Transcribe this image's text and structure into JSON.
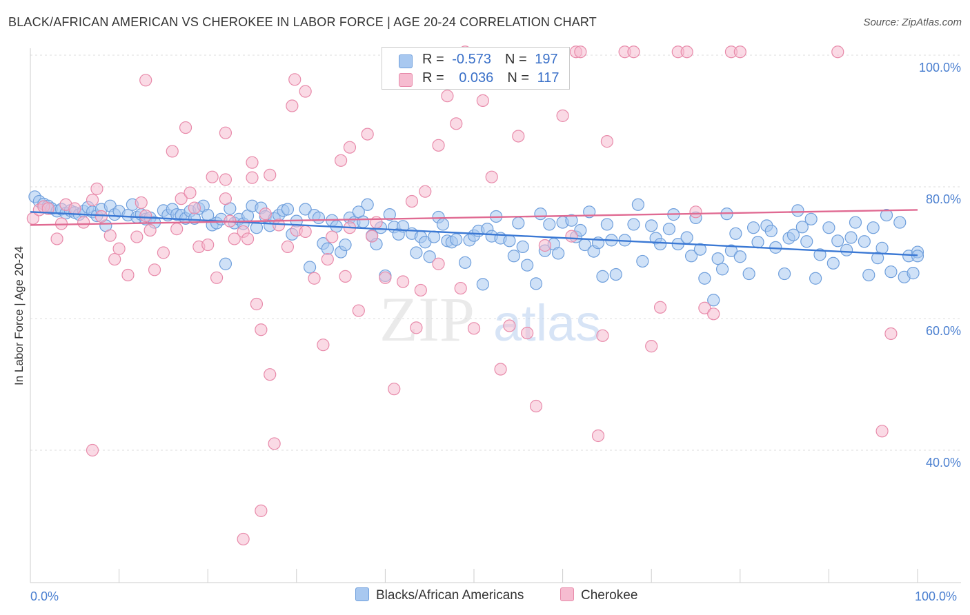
{
  "title": "BLACK/AFRICAN AMERICAN VS CHEROKEE IN LABOR FORCE | AGE 20-24 CORRELATION CHART",
  "source": "Source: ZipAtlas.com",
  "watermark": {
    "zip": "ZIP",
    "atlas": "atlas"
  },
  "legend": {
    "blue": {
      "r_label": "R =",
      "r_value": "-0.573",
      "n_label": "N =",
      "n_value": "197"
    },
    "pink": {
      "r_label": "R =",
      "r_value": "0.036",
      "n_label": "N =",
      "n_value": "117"
    }
  },
  "colors": {
    "blue_fill": "#a8c8f0",
    "blue_stroke": "#6f9fdc",
    "blue_line": "#3a78d4",
    "pink_fill": "#f6bcd0",
    "pink_stroke": "#e88aaa",
    "pink_line": "#e06a92"
  },
  "chart_data": {
    "type": "scatter",
    "title": "BLACK/AFRICAN AMERICAN VS CHEROKEE IN LABOR FORCE | AGE 20-24 CORRELATION CHART",
    "xlabel": "",
    "ylabel": "In Labor Force | Age 20-24",
    "xlim": [
      0,
      100
    ],
    "ylim": [
      20,
      102
    ],
    "x_tick_labels": [
      "0.0%",
      "100.0%"
    ],
    "y_ticks": [
      40,
      60,
      80,
      100
    ],
    "y_tick_labels": [
      "40.0%",
      "60.0%",
      "80.0%",
      "100.0%"
    ],
    "series": [
      {
        "name": "Blacks/African Americans",
        "trend": {
          "x": [
            0,
            100
          ],
          "y": [
            76.2,
            69.6
          ]
        },
        "points": [
          [
            0.5,
            78.5
          ],
          [
            1,
            77.8
          ],
          [
            1.5,
            77.4
          ],
          [
            2,
            77.1
          ],
          [
            2.4,
            76.7
          ],
          [
            3,
            76.3
          ],
          [
            3.5,
            76.6
          ],
          [
            4,
            76
          ],
          [
            4.5,
            76.4
          ],
          [
            5,
            76.1
          ],
          [
            5.5,
            75.8
          ],
          [
            6,
            76.3
          ],
          [
            6.5,
            76.9
          ],
          [
            7,
            76.2
          ],
          [
            7.5,
            75.6
          ],
          [
            8,
            76.6
          ],
          [
            8.5,
            74.1
          ],
          [
            9,
            77.1
          ],
          [
            9.5,
            75.8
          ],
          [
            10,
            76.3
          ],
          [
            11,
            75.7
          ],
          [
            11.5,
            77.3
          ],
          [
            12,
            75.4
          ],
          [
            12.5,
            75.8
          ],
          [
            13,
            75.1
          ],
          [
            13.5,
            75.3
          ],
          [
            14,
            74.6
          ],
          [
            15,
            76.4
          ],
          [
            15.5,
            75.7
          ],
          [
            16,
            76.6
          ],
          [
            16.5,
            75.8
          ],
          [
            17,
            75.7
          ],
          [
            17.5,
            75.2
          ],
          [
            18,
            76.3
          ],
          [
            18.5,
            75.2
          ],
          [
            19,
            76.7
          ],
          [
            19.5,
            77.1
          ],
          [
            20,
            75.7
          ],
          [
            20.5,
            74.2
          ],
          [
            21,
            74.5
          ],
          [
            21.5,
            75.1
          ],
          [
            22,
            68.3
          ],
          [
            22.5,
            76.7
          ],
          [
            23,
            74.5
          ],
          [
            23.5,
            75.1
          ],
          [
            24,
            74.4
          ],
          [
            24.5,
            75.6
          ],
          [
            25,
            77.1
          ],
          [
            25.5,
            73.8
          ],
          [
            26,
            76.8
          ],
          [
            26.5,
            75.5
          ],
          [
            27,
            74.1
          ],
          [
            27.5,
            75.2
          ],
          [
            28,
            75.7
          ],
          [
            28.5,
            76.4
          ],
          [
            29,
            76.6
          ],
          [
            29.5,
            72.8
          ],
          [
            30,
            74.8
          ],
          [
            31,
            76.6
          ],
          [
            31.5,
            67.8
          ],
          [
            32,
            75.7
          ],
          [
            32.5,
            75.3
          ],
          [
            33,
            71.4
          ],
          [
            33.5,
            70.6
          ],
          [
            34,
            74.9
          ],
          [
            34.5,
            74
          ],
          [
            35,
            70.1
          ],
          [
            35.5,
            71.2
          ],
          [
            36,
            75.3
          ],
          [
            36.5,
            74.6
          ],
          [
            37,
            76.2
          ],
          [
            37.5,
            74.7
          ],
          [
            38,
            77.3
          ],
          [
            38.5,
            72.6
          ],
          [
            39,
            71.3
          ],
          [
            39.5,
            73.8
          ],
          [
            40,
            66.5
          ],
          [
            40.5,
            75.8
          ],
          [
            41,
            73.9
          ],
          [
            41.5,
            72.8
          ],
          [
            42,
            74
          ],
          [
            43,
            72.9
          ],
          [
            43.5,
            70
          ],
          [
            44,
            72.4
          ],
          [
            44.5,
            71.6
          ],
          [
            45,
            69.4
          ],
          [
            45.5,
            72.4
          ],
          [
            46,
            75.4
          ],
          [
            46.5,
            74.3
          ],
          [
            47,
            71.8
          ],
          [
            47.5,
            71.6
          ],
          [
            48,
            72
          ],
          [
            49,
            68.5
          ],
          [
            49.5,
            71.9
          ],
          [
            50,
            72.6
          ],
          [
            50.5,
            73.3
          ],
          [
            51,
            65.2
          ],
          [
            51.5,
            73.6
          ],
          [
            52,
            72.5
          ],
          [
            52.5,
            75.5
          ],
          [
            53,
            72.2
          ],
          [
            54,
            71.8
          ],
          [
            54.5,
            69.5
          ],
          [
            55,
            74.5
          ],
          [
            55.5,
            70.9
          ],
          [
            56,
            68.1
          ],
          [
            57,
            65.3
          ],
          [
            57.5,
            75.9
          ],
          [
            58,
            70.3
          ],
          [
            58.5,
            74.3
          ],
          [
            59,
            71.3
          ],
          [
            59.5,
            69.9
          ],
          [
            60,
            74.6
          ],
          [
            61,
            74.9
          ],
          [
            61.5,
            72.4
          ],
          [
            62,
            73.4
          ],
          [
            62.5,
            71.2
          ],
          [
            63,
            76.2
          ],
          [
            63.5,
            70.2
          ],
          [
            64,
            71.5
          ],
          [
            64.5,
            66.4
          ],
          [
            65,
            74.3
          ],
          [
            65.5,
            71.9
          ],
          [
            66,
            66.7
          ],
          [
            67,
            71.9
          ],
          [
            68,
            74.3
          ],
          [
            68.5,
            77.3
          ],
          [
            69,
            68.7
          ],
          [
            70,
            74.1
          ],
          [
            70.5,
            72.2
          ],
          [
            71,
            71.3
          ],
          [
            72,
            73.6
          ],
          [
            72.5,
            75.8
          ],
          [
            73,
            71.3
          ],
          [
            74,
            72.3
          ],
          [
            74.5,
            69.5
          ],
          [
            75,
            75.3
          ],
          [
            75.5,
            70.5
          ],
          [
            76,
            66.1
          ],
          [
            77,
            62.8
          ],
          [
            77.5,
            69.1
          ],
          [
            78,
            67.5
          ],
          [
            78.5,
            75.9
          ],
          [
            79,
            70.3
          ],
          [
            79.5,
            72.9
          ],
          [
            80,
            69.4
          ],
          [
            81,
            66.8
          ],
          [
            81.5,
            73.8
          ],
          [
            82,
            71.6
          ],
          [
            83,
            74.1
          ],
          [
            83.5,
            73.3
          ],
          [
            84,
            70.8
          ],
          [
            85,
            66.8
          ],
          [
            85.5,
            72.2
          ],
          [
            86,
            72.7
          ],
          [
            86.5,
            76.4
          ],
          [
            87,
            73.9
          ],
          [
            87.5,
            71.7
          ],
          [
            88,
            75.1
          ],
          [
            88.5,
            66.1
          ],
          [
            89,
            69.7
          ],
          [
            90,
            73.8
          ],
          [
            90.5,
            68.4
          ],
          [
            91,
            71.8
          ],
          [
            92,
            70.4
          ],
          [
            92.5,
            72.3
          ],
          [
            93,
            74.6
          ],
          [
            94,
            71.7
          ],
          [
            94.5,
            66.6
          ],
          [
            95,
            73.8
          ],
          [
            96,
            70.7
          ],
          [
            96.5,
            75.7
          ],
          [
            97,
            67.1
          ],
          [
            98,
            74.6
          ],
          [
            98.5,
            66.3
          ],
          [
            99,
            69.5
          ],
          [
            99.5,
            66.9
          ],
          [
            100,
            70.1
          ],
          [
            100,
            69.5
          ],
          [
            95.5,
            69.2
          ]
        ]
      },
      {
        "name": "Cherokee",
        "trend": {
          "x": [
            0,
            100
          ],
          "y": [
            74.2,
            76.5
          ]
        },
        "points": [
          [
            0.3,
            75.2
          ],
          [
            1,
            76.5
          ],
          [
            1.5,
            77
          ],
          [
            2,
            76.7
          ],
          [
            3,
            72.1
          ],
          [
            3.5,
            74.4
          ],
          [
            4,
            77.3
          ],
          [
            5,
            76.7
          ],
          [
            6,
            74.6
          ],
          [
            7,
            78
          ],
          [
            7.5,
            79.7
          ],
          [
            8,
            75.5
          ],
          [
            9,
            72.6
          ],
          [
            9.5,
            69
          ],
          [
            10,
            70.6
          ],
          [
            11,
            66.6
          ],
          [
            12,
            72.4
          ],
          [
            12.5,
            77.6
          ],
          [
            13,
            75.6
          ],
          [
            13.5,
            73.4
          ],
          [
            14,
            67.4
          ],
          [
            15,
            70
          ],
          [
            16,
            85.4
          ],
          [
            16.5,
            73.6
          ],
          [
            17,
            78.2
          ],
          [
            18,
            79.1
          ],
          [
            18.5,
            76.8
          ],
          [
            19,
            70.9
          ],
          [
            20,
            71.2
          ],
          [
            20.5,
            81.5
          ],
          [
            21,
            66.2
          ],
          [
            22,
            78.2
          ],
          [
            22.5,
            74.8
          ],
          [
            23,
            72.1
          ],
          [
            24,
            73.2
          ],
          [
            24.5,
            72.1
          ],
          [
            25,
            83.7
          ],
          [
            25.5,
            62.2
          ],
          [
            26,
            58.3
          ],
          [
            26.5,
            75.9
          ],
          [
            27,
            51.5
          ],
          [
            28,
            74.2
          ],
          [
            29,
            70.9
          ],
          [
            29.5,
            92.3
          ],
          [
            30,
            73.4
          ],
          [
            31,
            73.2
          ],
          [
            32,
            66.1
          ],
          [
            33,
            56
          ],
          [
            33.5,
            69
          ],
          [
            34,
            72.4
          ],
          [
            35,
            84
          ],
          [
            35.5,
            66.4
          ],
          [
            36,
            73.8
          ],
          [
            37,
            61.2
          ],
          [
            38,
            88
          ],
          [
            38.5,
            72.5
          ],
          [
            39,
            74.6
          ],
          [
            40,
            66.2
          ],
          [
            41,
            49.3
          ],
          [
            42,
            65.6
          ],
          [
            43,
            77.8
          ],
          [
            43.5,
            58.6
          ],
          [
            44,
            64.3
          ],
          [
            44.5,
            79.3
          ],
          [
            46,
            68.3
          ],
          [
            47,
            93.8
          ],
          [
            48,
            89.6
          ],
          [
            48.5,
            64.6
          ],
          [
            49,
            100.5
          ],
          [
            50,
            58.5
          ],
          [
            51,
            93.1
          ],
          [
            52,
            81.5
          ],
          [
            53,
            52.3
          ],
          [
            54,
            58.9
          ],
          [
            55,
            87.7
          ],
          [
            56,
            57.8
          ],
          [
            57,
            46.7
          ],
          [
            58,
            71.1
          ],
          [
            60,
            90.8
          ],
          [
            61,
            72.5
          ],
          [
            61.5,
            100.5
          ],
          [
            62,
            100.5
          ],
          [
            64,
            42.2
          ],
          [
            64.5,
            57.4
          ],
          [
            65,
            86.9
          ],
          [
            67,
            100.5
          ],
          [
            68,
            100.5
          ],
          [
            70,
            55.8
          ],
          [
            71,
            61.7
          ],
          [
            73,
            100.5
          ],
          [
            74,
            100.5
          ],
          [
            75,
            76.2
          ],
          [
            76,
            61.6
          ],
          [
            77,
            60.7
          ],
          [
            79,
            100.5
          ],
          [
            80,
            100.5
          ],
          [
            91,
            100.5
          ],
          [
            96,
            42.9
          ],
          [
            97,
            57.7
          ],
          [
            13,
            96.2
          ],
          [
            7,
            40
          ],
          [
            17.5,
            89
          ],
          [
            22,
            88.2
          ],
          [
            29.8,
            96.3
          ],
          [
            31,
            94.5
          ],
          [
            36,
            86
          ],
          [
            46,
            86.3
          ],
          [
            22,
            81.1
          ],
          [
            25,
            81.4
          ],
          [
            27,
            81.8
          ],
          [
            27.5,
            41
          ],
          [
            24,
            26.5
          ],
          [
            26,
            30.8
          ]
        ]
      }
    ]
  },
  "bottom_legend": {
    "blue": "Blacks/African Americans",
    "pink": "Cherokee"
  }
}
